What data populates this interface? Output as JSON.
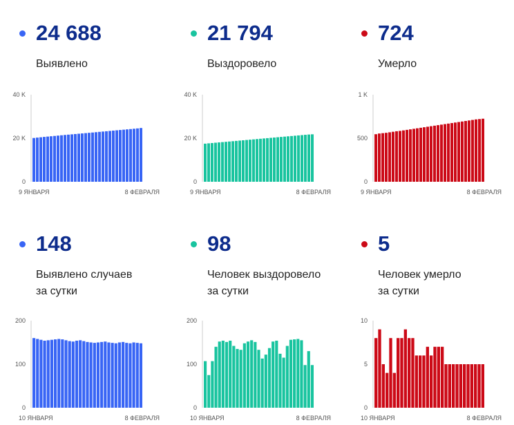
{
  "colors": {
    "blue": "#3865f5",
    "teal": "#19c49f",
    "red": "#cc0a17",
    "number": "#0d2c8c"
  },
  "panels": [
    {
      "value": "24 688",
      "label": [
        "Выявлено"
      ],
      "color": "#3865f5",
      "chart_data": {
        "type": "bar",
        "ylim": [
          0,
          40000
        ],
        "yticks": [
          "40 K",
          "20 K",
          "0"
        ],
        "xlabels": [
          "9 ЯНВАРЯ",
          "8 ФЕВРАЛЯ"
        ],
        "values": [
          20100,
          20280,
          20430,
          20600,
          20750,
          20900,
          21050,
          21200,
          21350,
          21500,
          21640,
          21780,
          21920,
          22060,
          22200,
          22340,
          22480,
          22620,
          22770,
          22920,
          23060,
          23200,
          23350,
          23500,
          23640,
          23780,
          23920,
          24060,
          24200,
          24350,
          24500,
          24688
        ]
      }
    },
    {
      "value": "21 794",
      "label": [
        "Выздоровело"
      ],
      "color": "#19c49f",
      "chart_data": {
        "type": "bar",
        "ylim": [
          0,
          40000
        ],
        "yticks": [
          "40 K",
          "20 K",
          "0"
        ],
        "xlabels": [
          "9 ЯНВАРЯ",
          "8 ФЕВРАЛЯ"
        ],
        "values": [
          17500,
          17650,
          17790,
          17930,
          18070,
          18210,
          18350,
          18490,
          18630,
          18770,
          18910,
          19050,
          19190,
          19330,
          19470,
          19610,
          19750,
          19890,
          20030,
          20170,
          20310,
          20450,
          20590,
          20730,
          20870,
          21010,
          21150,
          21290,
          21430,
          21570,
          21700,
          21794
        ]
      }
    },
    {
      "value": "724",
      "label": [
        "Умерло"
      ],
      "color": "#cc0a17",
      "chart_data": {
        "type": "bar",
        "ylim": [
          0,
          1000
        ],
        "yticks": [
          "1 K",
          "500",
          "0"
        ],
        "xlabels": [
          "9 ЯНВАРЯ",
          "8 ФЕВРАЛЯ"
        ],
        "values": [
          546,
          554,
          558,
          562,
          568,
          574,
          580,
          584,
          590,
          596,
          602,
          608,
          614,
          620,
          626,
          632,
          638,
          644,
          650,
          656,
          662,
          668,
          674,
          680,
          686,
          692,
          698,
          704,
          710,
          716,
          720,
          724
        ]
      }
    },
    {
      "value": "148",
      "label": [
        "Выявлено случаев",
        "за сутки"
      ],
      "color": "#3865f5",
      "chart_data": {
        "type": "bar",
        "ylim": [
          0,
          200
        ],
        "yticks": [
          "200",
          "100",
          "0"
        ],
        "xlabels": [
          "10 ЯНВАРЯ",
          "8 ФЕВРАЛЯ"
        ],
        "values": [
          160,
          158,
          156,
          154,
          155,
          156,
          157,
          158,
          157,
          155,
          153,
          152,
          154,
          155,
          153,
          151,
          150,
          149,
          150,
          151,
          152,
          150,
          149,
          148,
          150,
          151,
          149,
          148,
          150,
          149,
          148
        ]
      }
    },
    {
      "value": "98",
      "label": [
        "Человек выздоровело",
        "за сутки"
      ],
      "color": "#19c49f",
      "chart_data": {
        "type": "bar",
        "ylim": [
          0,
          200
        ],
        "yticks": [
          "200",
          "100",
          "0"
        ],
        "xlabels": [
          "10 ЯНВАРЯ",
          "8 ФЕВРАЛЯ"
        ],
        "values": [
          107,
          75,
          107,
          140,
          152,
          154,
          151,
          154,
          142,
          135,
          133,
          148,
          152,
          155,
          151,
          133,
          113,
          122,
          137,
          152,
          154,
          124,
          115,
          142,
          156,
          157,
          158,
          155,
          98,
          130,
          98
        ]
      }
    },
    {
      "value": "5",
      "label": [
        "Человек умерло",
        "за сутки"
      ],
      "color": "#cc0a17",
      "chart_data": {
        "type": "bar",
        "ylim": [
          0,
          10
        ],
        "yticks": [
          "10",
          "5",
          "0"
        ],
        "xlabels": [
          "10 ЯНВАРЯ",
          "8 ФЕВРАЛЯ"
        ],
        "values": [
          8,
          9,
          5,
          4,
          8,
          4,
          8,
          8,
          9,
          8,
          8,
          6,
          6,
          6,
          7,
          6,
          7,
          7,
          7,
          5,
          5,
          5,
          5,
          5,
          5,
          5,
          5,
          5,
          5,
          5
        ]
      }
    }
  ]
}
